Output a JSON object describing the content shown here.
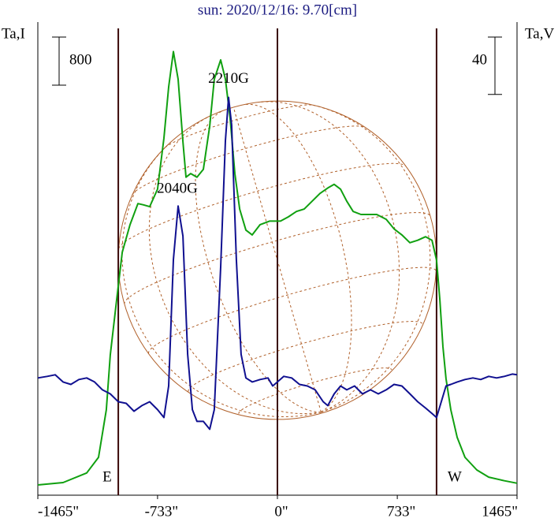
{
  "chart_data": {
    "type": "line",
    "title": "sun: 2020/12/16: 9.70[cm]",
    "ylabel": "Ta,I",
    "y2label": "Ta,V",
    "xlim": [
      -1465,
      1465
    ],
    "xticks": [
      {
        "value": -1465,
        "label": "-1465\""
      },
      {
        "value": -733,
        "label": "-733\""
      },
      {
        "value": 0,
        "label": "0\""
      },
      {
        "value": 733,
        "label": "733\""
      },
      {
        "value": 1465,
        "label": "1465\""
      }
    ],
    "ylim": [
      0,
      7870
    ],
    "y2lim": [
      -79,
      251
    ],
    "scale_bar": {
      "value": 800,
      "label": "800"
    },
    "scale_bar2": {
      "value": 40,
      "label": "40"
    },
    "limbs": [
      {
        "x": -973,
        "label": "E"
      },
      {
        "x": 0
      },
      {
        "x": 973,
        "label": "W"
      }
    ],
    "annotations": [
      {
        "text": "2040G",
        "x": -612,
        "y": 5090
      },
      {
        "text": "2210G",
        "x": -299,
        "y": 6920
      }
    ],
    "series": [
      {
        "name": "Ta,I",
        "color": "#10a010",
        "x": [
          -1465,
          -1311,
          -1166,
          -1094,
          -1046,
          -1022,
          -983,
          -949,
          -901,
          -853,
          -819,
          -781,
          -733,
          -694,
          -665,
          -636,
          -607,
          -578,
          -559,
          -530,
          -492,
          -453,
          -414,
          -386,
          -347,
          -318,
          -289,
          -260,
          -231,
          -193,
          -154,
          -106,
          -48,
          19,
          67,
          116,
          164,
          212,
          260,
          308,
          347,
          386,
          424,
          463,
          511,
          559,
          607,
          665,
          713,
          761,
          810,
          858,
          906,
          945,
          973,
          993,
          1012,
          1031,
          1060,
          1099,
          1147,
          1219,
          1292,
          1388,
          1465
        ],
        "values": [
          170,
          210,
          370,
          630,
          1420,
          2330,
          3250,
          4040,
          4500,
          4850,
          4830,
          4800,
          5090,
          5940,
          6790,
          7380,
          6920,
          5880,
          5290,
          5350,
          5290,
          5420,
          6140,
          6920,
          7240,
          6920,
          6270,
          5350,
          4760,
          4410,
          4330,
          4500,
          4560,
          4560,
          4630,
          4720,
          4760,
          4890,
          5020,
          5110,
          5170,
          5090,
          4890,
          4720,
          4670,
          4670,
          4670,
          4590,
          4430,
          4330,
          4200,
          4240,
          4300,
          4240,
          3910,
          3250,
          2470,
          1940,
          1420,
          960,
          630,
          420,
          300,
          240,
          200
        ]
      },
      {
        "name": "Ta,V",
        "color": "#101090",
        "axis": "y2",
        "x": [
          -1465,
          -1407,
          -1359,
          -1311,
          -1263,
          -1214,
          -1166,
          -1118,
          -1070,
          -1022,
          -973,
          -925,
          -877,
          -829,
          -781,
          -733,
          -694,
          -665,
          -636,
          -607,
          -578,
          -549,
          -520,
          -492,
          -453,
          -414,
          -386,
          -347,
          -318,
          -299,
          -280,
          -251,
          -222,
          -193,
          -154,
          -106,
          -58,
          -29,
          0,
          39,
          87,
          135,
          183,
          231,
          280,
          308,
          347,
          386,
          424,
          472,
          520,
          569,
          617,
          665,
          713,
          761,
          810,
          858,
          906,
          945,
          973,
          1002,
          1031,
          1060,
          1099,
          1147,
          1195,
          1243,
          1292,
          1340,
          1388,
          1436,
          1465
        ],
        "values": [
          2.8,
          3.9,
          5,
          0,
          -1.7,
          1.7,
          2.8,
          0,
          -5.5,
          -8.3,
          -13.8,
          -14.9,
          -20.4,
          -16.5,
          -13.8,
          -19.3,
          -24.8,
          -2.8,
          85.3,
          122.7,
          101.8,
          19.3,
          -19.3,
          -27.5,
          -27.5,
          -33,
          -19.3,
          80.3,
          168.3,
          198.5,
          179.3,
          85.3,
          19.3,
          2.8,
          0,
          1.7,
          2.8,
          -2.8,
          0,
          3.9,
          2.8,
          -1.7,
          -2.8,
          -5.5,
          -13.8,
          -16.5,
          -8.3,
          -2.8,
          -5.5,
          -2.8,
          -8.3,
          -5.5,
          -8.3,
          -5.5,
          -1.7,
          -2.8,
          -8.3,
          -13.8,
          -18.2,
          -22,
          -24.8,
          -13.8,
          -2.8,
          -1.7,
          0,
          1.7,
          2.8,
          1.7,
          3.9,
          2.8,
          3.9,
          5.5,
          5
        ]
      }
    ]
  }
}
